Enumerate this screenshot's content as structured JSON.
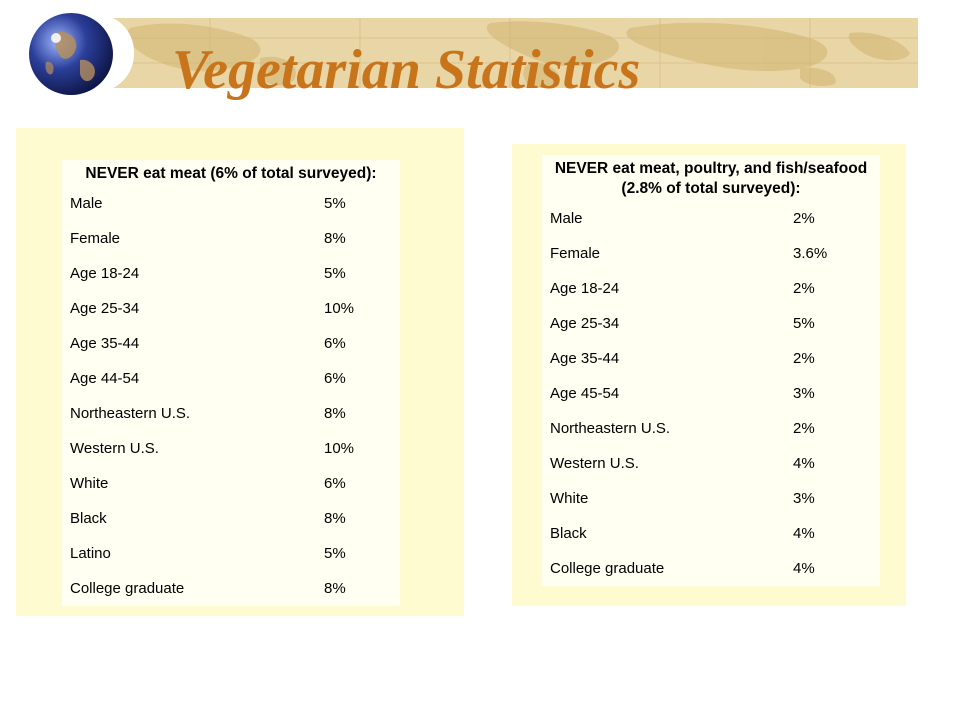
{
  "slide": {
    "title": "Vegetarian Statistics",
    "accent_color": "#c8741b",
    "panel_color": "#fffbd1",
    "header_color": "#e9d6a6"
  },
  "left_table": {
    "heading": "NEVER eat meat (6% of total surveyed):",
    "rows": [
      {
        "label": "Male",
        "value": "5%"
      },
      {
        "label": "Female",
        "value": "8%"
      },
      {
        "label": "Age 18-24",
        "value": "5%"
      },
      {
        "label": "Age 25-34",
        "value": "10%"
      },
      {
        "label": "Age 35-44",
        "value": "6%"
      },
      {
        "label": "Age 44-54",
        "value": "6%"
      },
      {
        "label": "Northeastern U.S.",
        "value": "8%"
      },
      {
        "label": "Western U.S.",
        "value": "10%"
      },
      {
        "label": "White",
        "value": "6%"
      },
      {
        "label": "Black",
        "value": "8%"
      },
      {
        "label": "Latino",
        "value": "5%"
      },
      {
        "label": "College graduate",
        "value": "8%"
      }
    ]
  },
  "right_table": {
    "heading_line1": "NEVER eat meat, poultry, and fish/seafood",
    "heading_line2": "(2.8% of total surveyed):",
    "rows": [
      {
        "label": "Male",
        "value": "2%"
      },
      {
        "label": "Female",
        "value": "3.6%"
      },
      {
        "label": "Age 18-24",
        "value": "2%"
      },
      {
        "label": "Age 25-34",
        "value": "5%"
      },
      {
        "label": "Age 35-44",
        "value": "2%"
      },
      {
        "label": "Age 45-54",
        "value": "3%"
      },
      {
        "label": "Northeastern U.S.",
        "value": "2%"
      },
      {
        "label": "Western U.S.",
        "value": "4%"
      },
      {
        "label": "White",
        "value": "3%"
      },
      {
        "label": "Black",
        "value": "4%"
      },
      {
        "label": "College graduate",
        "value": "4%"
      }
    ]
  }
}
